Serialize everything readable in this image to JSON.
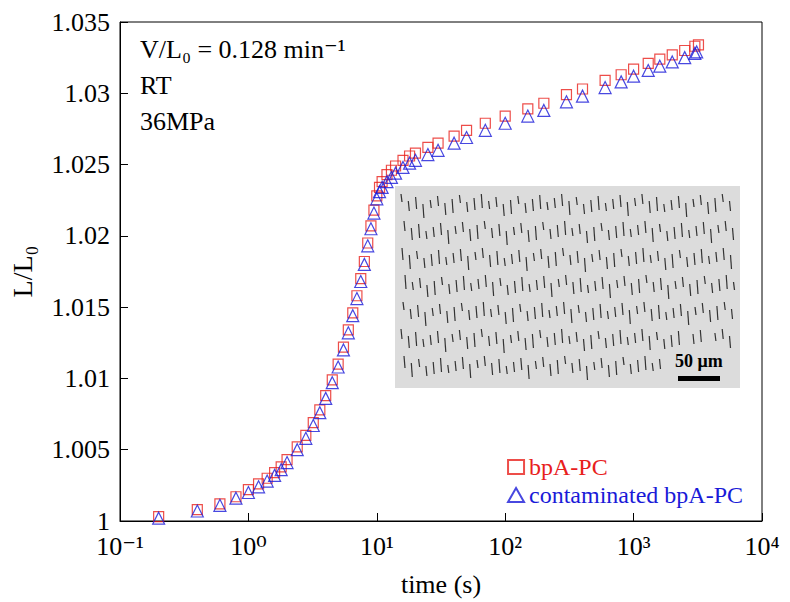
{
  "chart_data": {
    "type": "scatter",
    "x_label": "time (s)",
    "y_label": "L/L₀",
    "annotations": [
      "V/L₀ = 0.128 min⁻¹",
      "RT",
      "36MPa"
    ],
    "inset_scale": "50 μm",
    "log": "x",
    "grid": false,
    "legend": "lower right",
    "xlim": [
      0.1,
      10000
    ],
    "xticks": [
      {
        "value": 0.1,
        "label": "10⁻¹"
      },
      {
        "value": 1,
        "label": "10⁰"
      },
      {
        "value": 10,
        "label": "10¹"
      },
      {
        "value": 100,
        "label": "10²"
      },
      {
        "value": 1000,
        "label": "10³"
      },
      {
        "value": 10000,
        "label": "10⁴"
      }
    ],
    "ylim": [
      1,
      1.035
    ],
    "yticks": [
      1,
      1.005,
      1.01,
      1.015,
      1.02,
      1.025,
      1.03,
      1.035
    ],
    "series": [
      {
        "name": "bpA-PC",
        "color": "#e8201c",
        "marker": "square",
        "x": [
          0.2,
          0.4,
          0.6,
          0.8,
          1.0,
          1.2,
          1.4,
          1.6,
          1.8,
          2,
          2.4,
          2.8,
          3.2,
          3.6,
          4,
          4.5,
          5,
          5.5,
          6,
          6.5,
          7,
          7.5,
          8,
          8.5,
          9,
          9.5,
          10,
          10.5,
          11,
          12,
          13,
          14,
          16,
          18,
          20,
          25,
          30,
          40,
          50,
          70,
          100,
          150,
          200,
          300,
          400,
          600,
          800,
          1000,
          1300,
          1600,
          2000,
          2500,
          3000,
          3200
        ],
        "values": [
          1.0003,
          1.0008,
          1.0012,
          1.0017,
          1.0022,
          1.0026,
          1.003,
          1.0034,
          1.0038,
          1.0043,
          1.0052,
          1.006,
          1.0069,
          1.0078,
          1.0088,
          1.0099,
          1.011,
          1.0122,
          1.0134,
          1.0146,
          1.0158,
          1.017,
          1.0182,
          1.0195,
          1.0207,
          1.0218,
          1.0228,
          1.0234,
          1.0238,
          1.0243,
          1.0246,
          1.0249,
          1.0253,
          1.0256,
          1.0258,
          1.0262,
          1.0265,
          1.027,
          1.0274,
          1.0279,
          1.0284,
          1.0289,
          1.0293,
          1.0299,
          1.0303,
          1.0309,
          1.0313,
          1.0317,
          1.0321,
          1.0324,
          1.0327,
          1.033,
          1.0333,
          1.0334
        ]
      },
      {
        "name": "contaminated bpA-PC",
        "color": "#1a1ad8",
        "marker": "triangle",
        "x": [
          0.2,
          0.4,
          0.6,
          0.8,
          1.0,
          1.2,
          1.4,
          1.6,
          1.8,
          2,
          2.4,
          2.8,
          3.2,
          3.6,
          4,
          4.5,
          5,
          5.5,
          6,
          6.5,
          7,
          7.5,
          8,
          8.5,
          9,
          9.5,
          10,
          10.5,
          11,
          12,
          13,
          14,
          16,
          18,
          20,
          25,
          30,
          40,
          50,
          70,
          100,
          150,
          200,
          300,
          400,
          600,
          800,
          1000,
          1300,
          1600,
          2000,
          2500,
          3000,
          3100
        ],
        "values": [
          1.0002,
          1.0007,
          1.0011,
          1.0016,
          1.002,
          1.0024,
          1.0028,
          1.0032,
          1.0036,
          1.0041,
          1.005,
          1.0058,
          1.0067,
          1.0076,
          1.0086,
          1.0097,
          1.0108,
          1.012,
          1.0132,
          1.0144,
          1.0156,
          1.0168,
          1.018,
          1.0193,
          1.0205,
          1.0216,
          1.0226,
          1.0231,
          1.0234,
          1.0238,
          1.0241,
          1.0244,
          1.0248,
          1.0251,
          1.0253,
          1.0257,
          1.026,
          1.0265,
          1.0269,
          1.0274,
          1.0279,
          1.0284,
          1.0288,
          1.0294,
          1.0298,
          1.0304,
          1.0308,
          1.0312,
          1.0316,
          1.0319,
          1.0322,
          1.0325,
          1.0328,
          1.0329
        ]
      }
    ]
  }
}
